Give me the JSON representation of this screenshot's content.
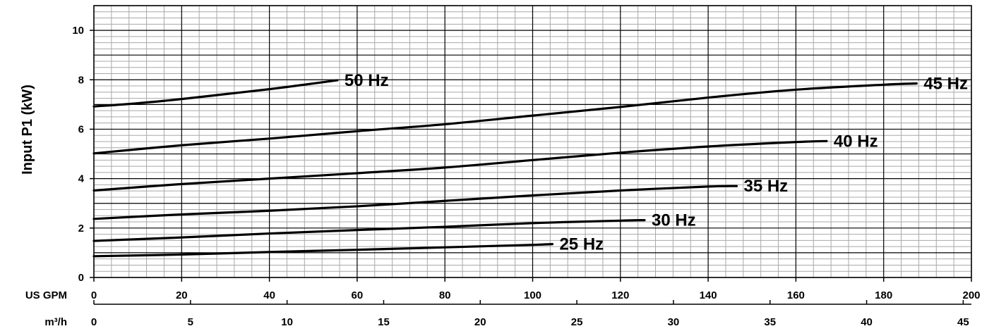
{
  "chart_data": {
    "type": "line",
    "ylabel": "Input P1 (kW)",
    "ylim": [
      0,
      11
    ],
    "yticks": [
      "0",
      "2",
      "4",
      "6",
      "8",
      "10"
    ],
    "x_unit_gpm": "US GPM",
    "x_unit_m3h": "m³/h",
    "xlim": [
      0,
      200
    ],
    "xticks_gpm": [
      "0",
      "20",
      "40",
      "60",
      "80",
      "100",
      "120",
      "140",
      "160",
      "180",
      "200"
    ],
    "xticks_m3h": [
      "0",
      "5",
      "10",
      "15",
      "20",
      "25",
      "30",
      "35",
      "40",
      "45"
    ],
    "grid": true,
    "series": [
      {
        "name": "50 Hz",
        "x": [
          0,
          10,
          20,
          30,
          40,
          50,
          55.5
        ],
        "y": [
          6.92,
          7.05,
          7.22,
          7.42,
          7.62,
          7.85,
          7.98
        ]
      },
      {
        "name": "45 Hz",
        "x": [
          0,
          20,
          40,
          60,
          80,
          100,
          120,
          140,
          160,
          180,
          187.5
        ],
        "y": [
          5.02,
          5.35,
          5.62,
          5.92,
          6.2,
          6.55,
          6.9,
          7.28,
          7.6,
          7.8,
          7.85
        ]
      },
      {
        "name": "40 Hz",
        "x": [
          0,
          20,
          40,
          60,
          80,
          100,
          120,
          140,
          160,
          167
        ],
        "y": [
          3.52,
          3.78,
          4.0,
          4.22,
          4.45,
          4.75,
          5.05,
          5.3,
          5.48,
          5.52
        ]
      },
      {
        "name": "35 Hz",
        "x": [
          0,
          20,
          40,
          60,
          80,
          100,
          120,
          140,
          146.5
        ],
        "y": [
          2.37,
          2.55,
          2.7,
          2.88,
          3.1,
          3.32,
          3.52,
          3.68,
          3.7
        ]
      },
      {
        "name": "30 Hz",
        "x": [
          0,
          20,
          40,
          60,
          80,
          100,
          120,
          125.5
        ],
        "y": [
          1.48,
          1.62,
          1.78,
          1.92,
          2.05,
          2.2,
          2.3,
          2.32
        ]
      },
      {
        "name": "25 Hz",
        "x": [
          0,
          20,
          40,
          60,
          80,
          100,
          104.5
        ],
        "y": [
          0.86,
          0.93,
          1.03,
          1.12,
          1.22,
          1.32,
          1.35
        ]
      }
    ]
  }
}
